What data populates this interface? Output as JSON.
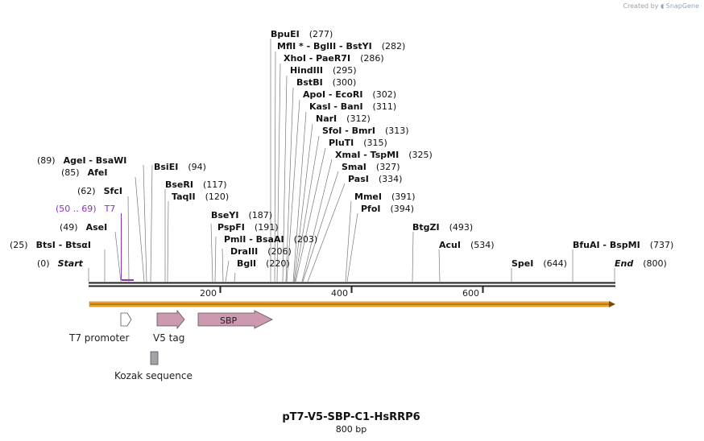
{
  "branding": {
    "created_by": "Created by",
    "product": "SnapGene"
  },
  "plasmid": {
    "name": "pT7-V5-SBP-C1-HsRRP6",
    "size_label": "800 bp",
    "length": 800
  },
  "sites": [
    {
      "name": "BpuEI",
      "pos": "(277)"
    },
    {
      "name": "MflI * - BglII - BstYI",
      "pos": "(282)"
    },
    {
      "name": "XhoI - PaeR7I",
      "pos": "(286)"
    },
    {
      "name": "HindIII",
      "pos": "(295)"
    },
    {
      "name": "BstBI",
      "pos": "(300)"
    },
    {
      "name": "ApoI - EcoRI",
      "pos": "(302)"
    },
    {
      "name": "KasI - BanI",
      "pos": "(311)"
    },
    {
      "name": "NarI",
      "pos": "(312)"
    },
    {
      "name": "SfoI - BmrI",
      "pos": "(313)"
    },
    {
      "name": "PluTI",
      "pos": "(315)"
    },
    {
      "name": "XmaI - TspMI",
      "pos": "(325)"
    },
    {
      "name": "SmaI",
      "pos": "(327)"
    },
    {
      "name": "PasI",
      "pos": "(334)"
    },
    {
      "name": "MmeI",
      "pos": "(391)"
    },
    {
      "name": "PfoI",
      "pos": "(394)"
    },
    {
      "name": "BtgZI",
      "pos": "(493)"
    },
    {
      "name": "AcuI",
      "pos": "(534)"
    },
    {
      "name": "BfuAI - BspMI",
      "pos": "(737)"
    },
    {
      "name": "SpeI",
      "pos": "(644)"
    },
    {
      "name": "End",
      "pos": "(800)"
    },
    {
      "name": "AgeI - BsaWI",
      "pos": "(89)"
    },
    {
      "name": "AfeI",
      "pos": "(85)"
    },
    {
      "name": "BsiEI",
      "pos": "(94)"
    },
    {
      "name": "BseRI",
      "pos": "(117)"
    },
    {
      "name": "TaqII",
      "pos": "(120)"
    },
    {
      "name": "SfcI",
      "pos": "(62)"
    },
    {
      "name": "T7",
      "pos": "(50 .. 69)"
    },
    {
      "name": "AseI",
      "pos": "(49)"
    },
    {
      "name": "BtsI - BtsαI",
      "pos": "(25)"
    },
    {
      "name": "Start",
      "pos": "(0)"
    },
    {
      "name": "BseYI",
      "pos": "(187)"
    },
    {
      "name": "PspFI",
      "pos": "(191)"
    },
    {
      "name": "PmlI - BsaAI",
      "pos": "(203)"
    },
    {
      "name": "DraIII",
      "pos": "(206)"
    },
    {
      "name": "BglI",
      "pos": "(220)"
    }
  ],
  "ruler": {
    "ticks": [
      200,
      400,
      600
    ]
  },
  "features": [
    {
      "name": "T7 promoter",
      "start": 50,
      "end": 69,
      "fill": "#ffffff"
    },
    {
      "name": "V5 tag",
      "start": 105,
      "end": 147,
      "fill": "#cc99b1"
    },
    {
      "name": "SBP",
      "start": 167,
      "end": 278,
      "fill": "#cc99b1"
    },
    {
      "name": "Kozak sequence",
      "start": 94,
      "end": 104,
      "fill": "#9fa4aa"
    }
  ],
  "colors": {
    "orf": "#f5a623",
    "primer": "#8b2fc9",
    "backbone": "#222222",
    "feature": "#cc99b1"
  }
}
